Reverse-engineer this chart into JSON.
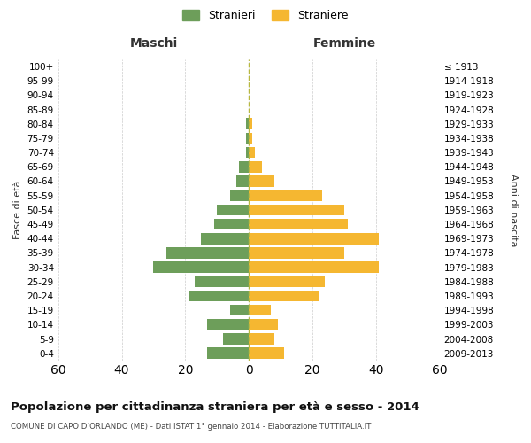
{
  "age_groups": [
    "0-4",
    "5-9",
    "10-14",
    "15-19",
    "20-24",
    "25-29",
    "30-34",
    "35-39",
    "40-44",
    "45-49",
    "50-54",
    "55-59",
    "60-64",
    "65-69",
    "70-74",
    "75-79",
    "80-84",
    "85-89",
    "90-94",
    "95-99",
    "100+"
  ],
  "birth_years": [
    "2009-2013",
    "2004-2008",
    "1999-2003",
    "1994-1998",
    "1989-1993",
    "1984-1988",
    "1979-1983",
    "1974-1978",
    "1969-1973",
    "1964-1968",
    "1959-1963",
    "1954-1958",
    "1949-1953",
    "1944-1948",
    "1939-1943",
    "1934-1938",
    "1929-1933",
    "1924-1928",
    "1919-1923",
    "1914-1918",
    "≤ 1913"
  ],
  "stranieri": [
    13,
    8,
    13,
    6,
    19,
    17,
    30,
    26,
    15,
    11,
    10,
    6,
    4,
    3,
    1,
    1,
    1,
    0,
    0,
    0,
    0
  ],
  "straniere": [
    11,
    8,
    9,
    7,
    22,
    24,
    41,
    30,
    41,
    31,
    30,
    23,
    8,
    4,
    2,
    1,
    1,
    0,
    0,
    0,
    0
  ],
  "male_color": "#6d9e5a",
  "female_color": "#f5b731",
  "zero_line_color": "#b8b840",
  "background_color": "#ffffff",
  "grid_color": "#cccccc",
  "xlim": 60,
  "title": "Popolazione per cittadinanza straniera per età e sesso - 2014",
  "subtitle": "COMUNE DI CAPO D’ORLANDO (ME) - Dati ISTAT 1° gennaio 2014 - Elaborazione TUTTITALIA.IT",
  "xlabel_left": "Maschi",
  "xlabel_right": "Femmine",
  "ylabel_left": "Fasce di età",
  "ylabel_right": "Anni di nascita",
  "legend_male": "Stranieri",
  "legend_female": "Straniere"
}
